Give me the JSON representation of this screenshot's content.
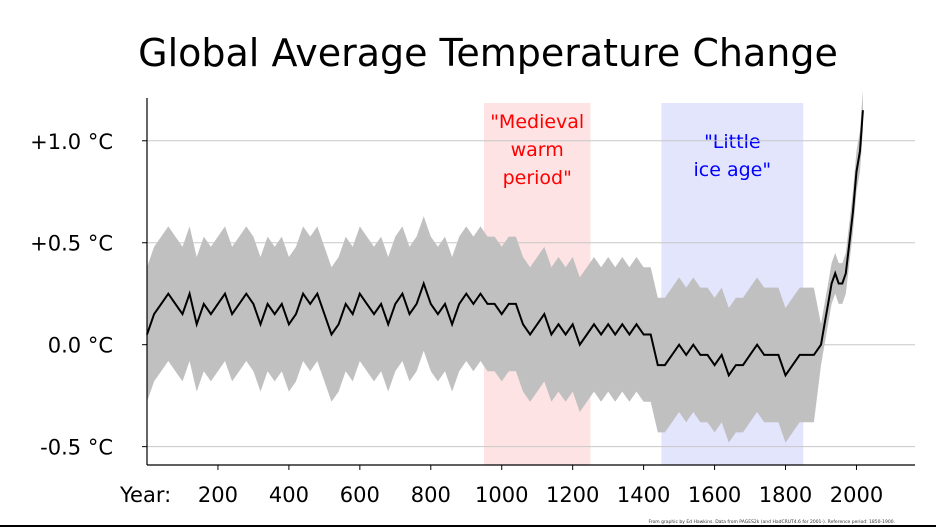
{
  "chart_data": {
    "type": "line",
    "title": "Global Average Temperature Change",
    "xlabel": "Year:",
    "x_ticks": [
      200,
      400,
      600,
      800,
      1000,
      1200,
      1400,
      1600,
      1800,
      2000
    ],
    "x_tick_labels": [
      "200",
      "400",
      "600",
      "800",
      "1000",
      "1200",
      "1400",
      "1600",
      "1800",
      "2000"
    ],
    "y_ticks": [
      -0.5,
      0,
      0.5,
      1.0
    ],
    "y_tick_labels": [
      "-0.5 °C",
      "0.0 °C",
      "+0.5 °C",
      "+1.0 °C"
    ],
    "xlim": [
      0,
      2165
    ],
    "ylim": [
      -0.59,
      1.2
    ],
    "grid": "horizontal",
    "colors": {
      "line": "#000000",
      "band": "#c0c0c0",
      "grid": "#c8c8c8",
      "medieval": "#fde3e3",
      "ice_age": "#e3e5fc",
      "medieval_text": "#ff0000",
      "ice_text": "#0000ff"
    },
    "regions": [
      {
        "label_lines": [
          "\"Medieval",
          "warm",
          "period\""
        ],
        "from": 950,
        "to": 1250,
        "color": "#fde3e3",
        "text_color": "#ff0000"
      },
      {
        "label_lines": [
          "\"Little",
          "ice age\""
        ],
        "from": 1450,
        "to": 1850,
        "color": "#e3e5fc",
        "text_color": "#0000ff"
      }
    ],
    "uncertainty": [
      {
        "from": 0,
        "to": 1900,
        "halfwidth": 0.33
      },
      {
        "from": 1900,
        "to": 2018,
        "halfwidth": 0.1
      }
    ],
    "x": [
      0,
      20,
      40,
      60,
      80,
      100,
      120,
      140,
      160,
      180,
      200,
      220,
      240,
      260,
      280,
      300,
      320,
      340,
      360,
      380,
      400,
      420,
      440,
      460,
      480,
      500,
      520,
      540,
      560,
      580,
      600,
      620,
      640,
      660,
      680,
      700,
      720,
      740,
      760,
      780,
      800,
      820,
      840,
      860,
      880,
      900,
      920,
      940,
      960,
      980,
      1000,
      1020,
      1040,
      1060,
      1080,
      1100,
      1120,
      1140,
      1160,
      1180,
      1200,
      1220,
      1240,
      1260,
      1280,
      1300,
      1320,
      1340,
      1360,
      1380,
      1400,
      1420,
      1440,
      1460,
      1480,
      1500,
      1520,
      1540,
      1560,
      1580,
      1600,
      1620,
      1640,
      1660,
      1680,
      1700,
      1720,
      1740,
      1760,
      1780,
      1800,
      1820,
      1840,
      1860,
      1880,
      1900,
      1910,
      1920,
      1930,
      1940,
      1950,
      1960,
      1970,
      1980,
      1990,
      2000,
      2010,
      2018
    ],
    "values": [
      0.05,
      0.15,
      0.2,
      0.25,
      0.2,
      0.15,
      0.25,
      0.1,
      0.2,
      0.15,
      0.2,
      0.25,
      0.15,
      0.2,
      0.25,
      0.2,
      0.1,
      0.2,
      0.15,
      0.2,
      0.1,
      0.15,
      0.25,
      0.2,
      0.25,
      0.15,
      0.05,
      0.1,
      0.2,
      0.15,
      0.25,
      0.2,
      0.15,
      0.2,
      0.1,
      0.2,
      0.25,
      0.15,
      0.2,
      0.3,
      0.2,
      0.15,
      0.2,
      0.1,
      0.2,
      0.25,
      0.2,
      0.25,
      0.2,
      0.2,
      0.15,
      0.2,
      0.2,
      0.1,
      0.05,
      0.1,
      0.15,
      0.05,
      0.1,
      0.05,
      0.1,
      0.0,
      0.05,
      0.1,
      0.05,
      0.1,
      0.05,
      0.1,
      0.05,
      0.1,
      0.05,
      0.05,
      -0.1,
      -0.1,
      -0.05,
      0.0,
      -0.05,
      0.0,
      -0.05,
      -0.05,
      -0.1,
      -0.05,
      -0.15,
      -0.1,
      -0.1,
      -0.05,
      0.0,
      -0.05,
      -0.05,
      -0.05,
      -0.15,
      -0.1,
      -0.05,
      -0.05,
      -0.05,
      0.0,
      0.1,
      0.2,
      0.3,
      0.35,
      0.3,
      0.3,
      0.35,
      0.5,
      0.65,
      0.85,
      0.95,
      1.15
    ],
    "footnote": "From graphic by Ed Hawkins.  Data from PAGES2k (and HadCRUT4.6 for 2001-).  Reference period: 1850-1900."
  }
}
